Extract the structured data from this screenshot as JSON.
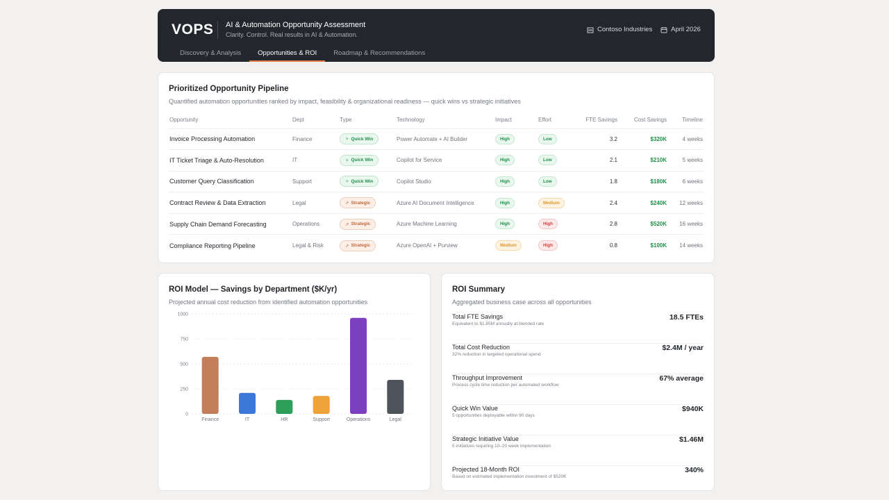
{
  "header": {
    "brand": "VOPS",
    "title": "AI & Automation Opportunity Assessment",
    "subtitle": "Clarity. Control. Real results in AI & Automation.",
    "company": "Contoso Industries",
    "date": "April 2026",
    "tabs": [
      "Discovery & Analysis",
      "Opportunities & ROI",
      "Roadmap & Recommendations"
    ],
    "active_tab": "Opportunities & ROI"
  },
  "pipeline": {
    "title": "Prioritized Opportunity Pipeline",
    "subtitle": "Quantified automation opportunities ranked by impact, feasibility & organizational readiness — quick wins vs strategic initiatives",
    "columns": [
      "Opportunity",
      "Dept",
      "Type",
      "Technology",
      "Impact",
      "Effort",
      "FTE Savings",
      "Cost Savings",
      "Timeline"
    ],
    "rows": [
      {
        "opportunity": "Invoice Processing Automation",
        "dept": "Finance",
        "type": "Quick Win",
        "technology": "Power Automate + AI Builder",
        "impact": "High",
        "effort": "Low",
        "fte": "3.2",
        "cost": "$320K",
        "timeline": "4 weeks"
      },
      {
        "opportunity": "IT Ticket Triage & Auto-Resolution",
        "dept": "IT",
        "type": "Quick Win",
        "technology": "Copilot for Service",
        "impact": "High",
        "effort": "Low",
        "fte": "2.1",
        "cost": "$210K",
        "timeline": "5 weeks"
      },
      {
        "opportunity": "Customer Query Classification",
        "dept": "Support",
        "type": "Quick Win",
        "technology": "Copilot Studio",
        "impact": "High",
        "effort": "Low",
        "fte": "1.8",
        "cost": "$180K",
        "timeline": "6 weeks"
      },
      {
        "opportunity": "Contract Review & Data Extraction",
        "dept": "Legal",
        "type": "Strategic",
        "technology": "Azure AI Document Intelligence",
        "impact": "High",
        "effort": "Medium",
        "fte": "2.4",
        "cost": "$240K",
        "timeline": "12 weeks"
      },
      {
        "opportunity": "Supply Chain Demand Forecasting",
        "dept": "Operations",
        "type": "Strategic",
        "technology": "Azure Machine Learning",
        "impact": "High",
        "effort": "High",
        "fte": "2.8",
        "cost": "$520K",
        "timeline": "16 weeks"
      },
      {
        "opportunity": "Compliance Reporting Pipeline",
        "dept": "Legal & Risk",
        "type": "Strategic",
        "technology": "Azure OpenAI + Purview",
        "impact": "Medium",
        "effort": "High",
        "fte": "0.8",
        "cost": "$100K",
        "timeline": "14 weeks"
      }
    ]
  },
  "roi_model": {
    "title": "ROI Model — Savings by Department ($K/yr)",
    "subtitle": "Projected annual cost reduction from identified automation opportunities"
  },
  "chart_data": {
    "type": "bar",
    "categories": [
      "Finance",
      "IT",
      "HR",
      "Support",
      "Operations",
      "Legal"
    ],
    "values": [
      570,
      210,
      140,
      180,
      960,
      340
    ],
    "colors": [
      "#c07f5a",
      "#3b78d8",
      "#2e9e5b",
      "#f0a23a",
      "#7b3fbf",
      "#4e535c"
    ],
    "yticks": [
      0,
      250,
      500,
      750,
      1000
    ],
    "ylim": [
      0,
      1000
    ],
    "grid": true
  },
  "roi_summary": {
    "title": "ROI Summary",
    "subtitle": "Aggregated business case across all opportunities",
    "items": [
      {
        "label": "Total FTE Savings",
        "desc": "Equivalent to $1.85M annually at blended rate",
        "value": "18.5 FTEs"
      },
      {
        "label": "Total Cost Reduction",
        "desc": "32% reduction in targeted operational spend",
        "value": "$2.4M / year"
      },
      {
        "label": "Throughput Improvement",
        "desc": "Process cycle time reduction per automated workflow",
        "value": "67% average"
      },
      {
        "label": "Quick Win Value",
        "desc": "5 opportunities deployable within 90 days",
        "value": "$940K"
      },
      {
        "label": "Strategic Initiative Value",
        "desc": "5 initiatives requiring 10–20 week implementation",
        "value": "$1.46M"
      },
      {
        "label": "Projected 18-Month ROI",
        "desc": "Based on estimated implementation investment of $520K",
        "value": "340%"
      }
    ]
  }
}
